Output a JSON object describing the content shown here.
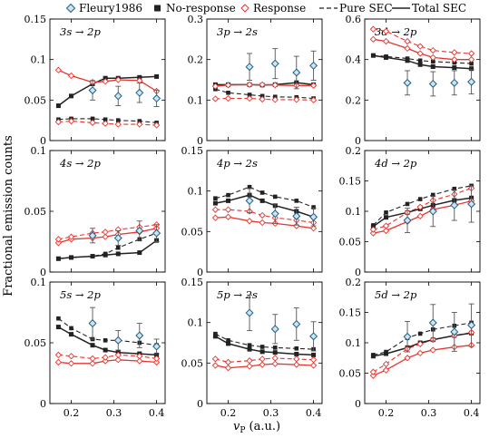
{
  "chart_data": {
    "type": "line",
    "ylabel": "Fractional emission counts",
    "xlabel": "vP (a.u.)",
    "xlabel_main": "v",
    "xlabel_sub": "P",
    "xlabel_unit": " (a.u.)",
    "xlim": [
      0.15,
      0.42
    ],
    "x_ticks": [
      0.2,
      0.3,
      0.4
    ],
    "legend_placement": "top",
    "legend": [
      {
        "name": "Fleury1986",
        "style": "fleury"
      },
      {
        "name": "No-response",
        "style": "nores"
      },
      {
        "name": "Response",
        "style": "resp"
      },
      {
        "name": "Pure SEC",
        "style": "pure"
      },
      {
        "name": "Total SEC",
        "style": "total"
      }
    ],
    "x": [
      0.17,
      0.2,
      0.25,
      0.28,
      0.31,
      0.36,
      0.4
    ],
    "x_exp": [
      0.25,
      0.31,
      0.36,
      0.4
    ],
    "colors": {
      "black": "#222222",
      "red": "#e8332d",
      "fleury_fill": "#cfe4f0",
      "fleury_edge": "#1b5f86",
      "grid": "#000000"
    },
    "panels": [
      {
        "title": "3s → 2p",
        "ylim": [
          0,
          0.15
        ],
        "yticks": [
          0,
          0.05,
          0.1,
          0.15
        ],
        "nores_total": [
          0.043,
          0.055,
          0.07,
          0.077,
          0.077,
          0.078,
          0.079
        ],
        "nores_pure": [
          0.026,
          0.027,
          0.027,
          0.026,
          0.025,
          0.024,
          0.022
        ],
        "resp_total": [
          0.087,
          0.08,
          0.072,
          0.073,
          0.075,
          0.074,
          0.061
        ],
        "resp_pure": [
          0.023,
          0.024,
          0.022,
          0.021,
          0.02,
          0.02,
          0.019
        ],
        "fleury": [
          0.062,
          0.055,
          0.059,
          0.052
        ],
        "fleury_err": [
          0.012,
          0.012,
          0.012,
          0.01
        ]
      },
      {
        "title": "3p → 2s",
        "ylim": [
          0,
          0.3
        ],
        "yticks": [
          0,
          0.1,
          0.2,
          0.3
        ],
        "nores_total": [
          0.138,
          0.138,
          0.138,
          0.137,
          0.138,
          0.143,
          0.138
        ],
        "nores_pure": [
          0.127,
          0.118,
          0.113,
          0.11,
          0.108,
          0.107,
          0.104
        ],
        "resp_total": [
          0.134,
          0.137,
          0.138,
          0.138,
          0.137,
          0.136,
          0.136
        ],
        "resp_pure": [
          0.103,
          0.104,
          0.104,
          0.102,
          0.101,
          0.101,
          0.1
        ],
        "fleury": [
          0.182,
          0.19,
          0.168,
          0.185
        ],
        "fleury_err": [
          0.033,
          0.037,
          0.04,
          0.036
        ]
      },
      {
        "title": "3d → 2p",
        "ylim": [
          0,
          0.6
        ],
        "yticks": [
          0,
          0.2,
          0.4,
          0.6
        ],
        "nores_total": [
          0.42,
          0.41,
          0.395,
          0.375,
          0.365,
          0.36,
          0.355
        ],
        "nores_pure": [
          0.42,
          0.415,
          0.405,
          0.395,
          0.39,
          0.385,
          0.38
        ],
        "resp_total": [
          0.5,
          0.49,
          0.455,
          0.43,
          0.41,
          0.4,
          0.4
        ],
        "resp_pure": [
          0.55,
          0.54,
          0.49,
          0.465,
          0.445,
          0.435,
          0.43
        ],
        "fleury": [
          0.285,
          0.28,
          0.285,
          0.29
        ],
        "fleury_err": [
          0.06,
          0.06,
          0.06,
          0.06
        ]
      },
      {
        "title": "4s → 2p",
        "ylim": [
          0,
          0.1
        ],
        "yticks": [
          0,
          0.05,
          0.1
        ],
        "nores_total": [
          0.011,
          0.012,
          0.013,
          0.014,
          0.015,
          0.016,
          0.026
        ],
        "nores_pure": [
          0.011,
          0.012,
          0.013,
          0.015,
          0.02,
          0.027,
          0.032
        ],
        "resp_total": [
          0.024,
          0.027,
          0.028,
          0.029,
          0.031,
          0.033,
          0.036
        ],
        "resp_pure": [
          0.027,
          0.029,
          0.032,
          0.033,
          0.035,
          0.037,
          0.039
        ],
        "fleury": [
          0.03,
          0.028,
          0.034,
          0.032
        ],
        "fleury_err": [
          0.006,
          0.006,
          0.008,
          0.007
        ]
      },
      {
        "title": "4p → 2s",
        "ylim": [
          0,
          0.15
        ],
        "yticks": [
          0,
          0.05,
          0.1,
          0.15
        ],
        "nores_total": [
          0.085,
          0.088,
          0.095,
          0.088,
          0.082,
          0.075,
          0.068
        ],
        "nores_pure": [
          0.091,
          0.095,
          0.105,
          0.098,
          0.093,
          0.088,
          0.08
        ],
        "resp_total": [
          0.067,
          0.068,
          0.063,
          0.061,
          0.06,
          0.057,
          0.054
        ],
        "resp_pure": [
          0.077,
          0.077,
          0.075,
          0.07,
          0.067,
          0.064,
          0.061
        ],
        "fleury": [
          0.088,
          0.072,
          0.069,
          0.068
        ],
        "fleury_err": [
          0.015,
          0.012,
          0.011,
          0.011
        ]
      },
      {
        "title": "4d → 2p",
        "ylim": [
          0,
          0.2
        ],
        "yticks": [
          0,
          0.05,
          0.1,
          0.15,
          0.2
        ],
        "nores_total": [
          0.075,
          0.09,
          0.098,
          0.104,
          0.11,
          0.118,
          0.122
        ],
        "nores_pure": [
          0.077,
          0.098,
          0.112,
          0.12,
          0.127,
          0.137,
          0.142
        ],
        "resp_total": [
          0.064,
          0.068,
          0.083,
          0.092,
          0.103,
          0.11,
          0.117
        ],
        "resp_pure": [
          0.07,
          0.076,
          0.098,
          0.107,
          0.118,
          0.128,
          0.138
        ],
        "fleury": [
          0.085,
          0.1,
          0.11,
          0.112
        ],
        "fleury_err": [
          0.02,
          0.025,
          0.025,
          0.03
        ]
      },
      {
        "title": "5s → 2p",
        "ylim": [
          0,
          0.1
        ],
        "yticks": [
          0,
          0.05,
          0.1
        ],
        "nores_total": [
          0.063,
          0.057,
          0.048,
          0.044,
          0.042,
          0.041,
          0.04
        ],
        "nores_pure": [
          0.07,
          0.062,
          0.053,
          0.052,
          0.052,
          0.05,
          0.048
        ],
        "resp_total": [
          0.034,
          0.033,
          0.033,
          0.035,
          0.036,
          0.035,
          0.034
        ],
        "resp_pure": [
          0.04,
          0.039,
          0.037,
          0.038,
          0.04,
          0.039,
          0.037
        ],
        "fleury": [
          0.066,
          0.052,
          0.056,
          0.047
        ],
        "fleury_err": [
          0.013,
          0.008,
          0.01,
          0.006
        ]
      },
      {
        "title": "5p → 2s",
        "ylim": [
          0,
          0.15
        ],
        "yticks": [
          0,
          0.05,
          0.1,
          0.15
        ],
        "nores_total": [
          0.083,
          0.074,
          0.067,
          0.064,
          0.063,
          0.061,
          0.06
        ],
        "nores_pure": [
          0.086,
          0.078,
          0.072,
          0.07,
          0.069,
          0.068,
          0.067
        ],
        "resp_total": [
          0.047,
          0.044,
          0.046,
          0.048,
          0.049,
          0.048,
          0.047
        ],
        "resp_pure": [
          0.055,
          0.051,
          0.053,
          0.055,
          0.056,
          0.055,
          0.054
        ],
        "fleury": [
          0.112,
          0.092,
          0.098,
          0.083
        ],
        "fleury_err": [
          0.022,
          0.018,
          0.02,
          0.018
        ]
      },
      {
        "title": "5d → 2p",
        "ylim": [
          0,
          0.2
        ],
        "yticks": [
          0,
          0.05,
          0.1,
          0.15,
          0.2
        ],
        "nores_total": [
          0.078,
          0.082,
          0.092,
          0.1,
          0.105,
          0.112,
          0.116
        ],
        "nores_pure": [
          0.08,
          0.085,
          0.108,
          0.115,
          0.122,
          0.128,
          0.133
        ],
        "resp_total": [
          0.046,
          0.055,
          0.075,
          0.083,
          0.088,
          0.093,
          0.096
        ],
        "resp_pure": [
          0.052,
          0.065,
          0.09,
          0.098,
          0.105,
          0.112,
          0.117
        ],
        "fleury": [
          0.11,
          0.133,
          0.118,
          0.129
        ],
        "fleury_err": [
          0.025,
          0.03,
          0.032,
          0.035
        ]
      }
    ]
  }
}
